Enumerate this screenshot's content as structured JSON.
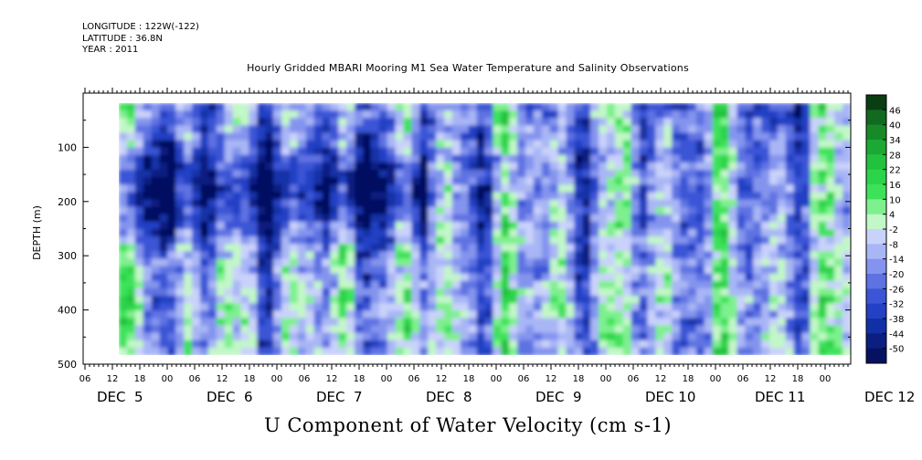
{
  "header": {
    "longitude": "LONGITUDE : 122W(-122)",
    "latitude": "LATITUDE : 36.8N",
    "year": "YEAR : 2011"
  },
  "chart_data": {
    "type": "heatmap",
    "title": "Hourly Gridded MBARI Mooring M1 Sea Water Temperature and Salinity Observations",
    "subtitle": "U Component of Water Velocity (cm s-1)",
    "ylabel": "DEPTH (m)",
    "ylim": [
      500,
      0
    ],
    "y_ticks": [
      100,
      200,
      300,
      400,
      500
    ],
    "x_hour_ticks": [
      "06",
      "12",
      "18",
      "00",
      "06",
      "12",
      "18",
      "00",
      "06",
      "12",
      "18",
      "00",
      "06",
      "12",
      "18",
      "00",
      "06",
      "12",
      "18",
      "00",
      "06",
      "12",
      "18",
      "00",
      "06",
      "12",
      "18",
      "00"
    ],
    "x_day_labels": [
      "DEC  5",
      "DEC  6",
      "DEC  7",
      "DEC  8",
      "DEC  9",
      "DEC 10",
      "DEC 11",
      "DEC 12"
    ],
    "data_time_range": [
      "DEC 5 12:00",
      "DEC 12 06:00"
    ],
    "data_depth_range": [
      20,
      490
    ],
    "colorbar": {
      "labels": [
        "46",
        "40",
        "34",
        "28",
        "22",
        "16",
        "10",
        "4",
        "-2",
        "-8",
        "-14",
        "-20",
        "-26",
        "-32",
        "-38",
        "-44",
        "-50"
      ],
      "colors": [
        "#0b3d12",
        "#116a1f",
        "#168a28",
        "#1ca834",
        "#22c23e",
        "#2bd448",
        "#3ee25a",
        "#7ef08e",
        "#c2f7c8",
        "#c9d2fa",
        "#a9b6f5",
        "#8494ee",
        "#5e72e2",
        "#3b55d6",
        "#2440c4",
        "#1230a6",
        "#0a1f80",
        "#061160"
      ]
    }
  }
}
